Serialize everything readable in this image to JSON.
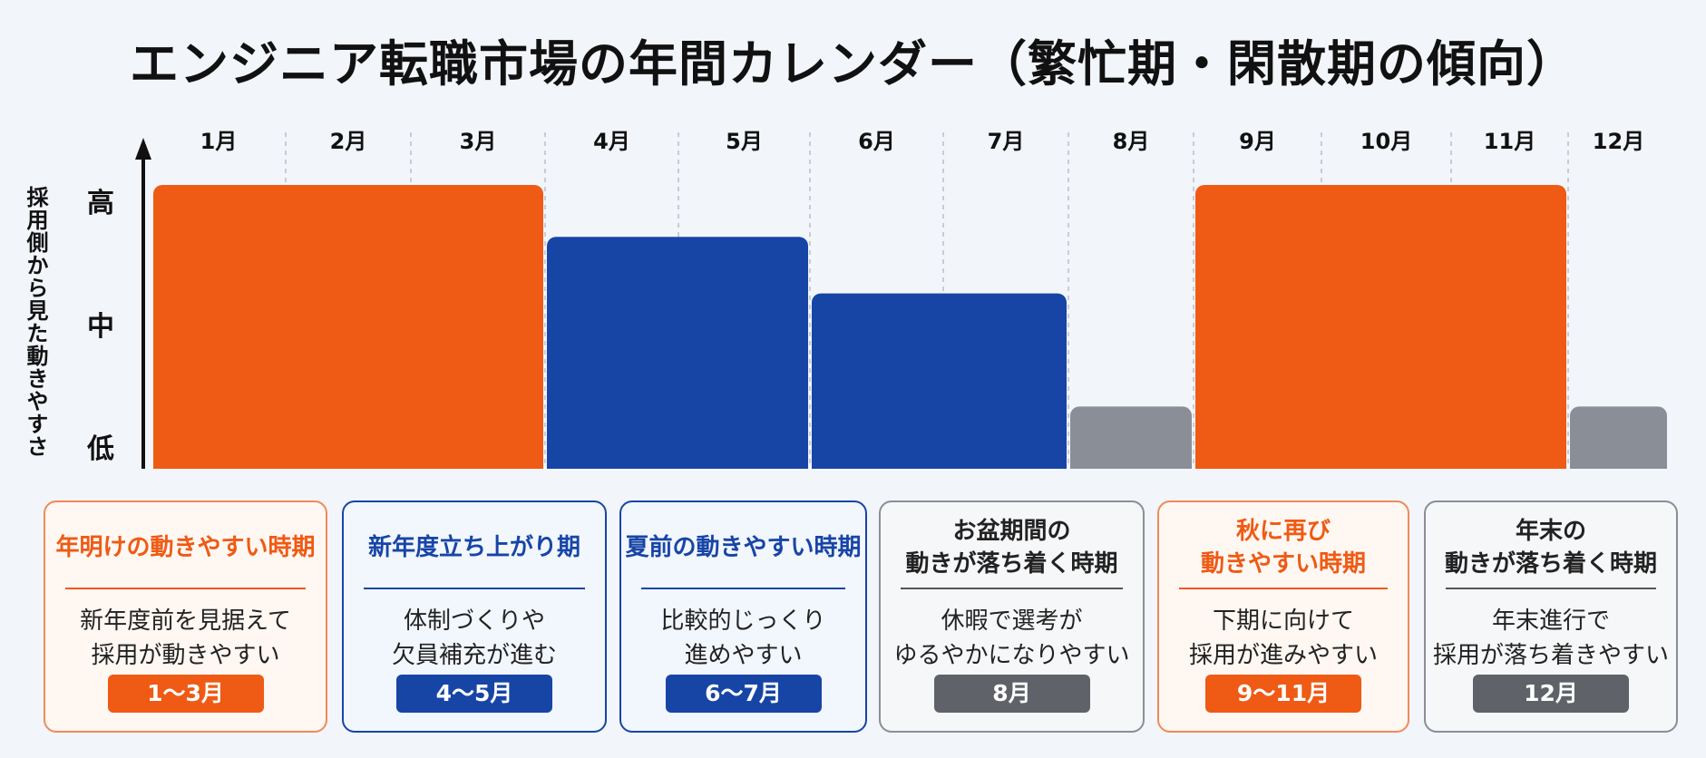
{
  "title": "エンジニア転職市場の年間カレンダー（繁忙期・閑散期の傾向）",
  "colors": {
    "high": "#ef5a14",
    "mid": "#1745a6",
    "low": "#8a8e96"
  },
  "chart_data": {
    "type": "bar",
    "categories": [
      "1月",
      "2月",
      "3月",
      "4月",
      "5月",
      "6月",
      "7月",
      "8月",
      "9月",
      "10月",
      "11月",
      "12月"
    ],
    "values": [
      3,
      3,
      3,
      2.45,
      2.45,
      1.85,
      1.85,
      0.65,
      3,
      3,
      3,
      0.65
    ],
    "ylabel": "採用側から見た動きやすさ",
    "yticks": [
      "低",
      "中",
      "高"
    ],
    "ylim": [
      0,
      3.5
    ],
    "grid": "vertical dashed"
  },
  "cards": [
    {
      "title": "年明けの動きやすい時期",
      "desc": "新年度前を見据えて\n採用が動きやすい",
      "badge": "1〜3月",
      "tone": "high"
    },
    {
      "title": "新年度立ち上がり期",
      "desc": "体制づくりや\n欠員補充が進む",
      "badge": "4〜5月",
      "tone": "mid"
    },
    {
      "title": "夏前の動きやすい時期",
      "desc": "比較的じっくり\n進めやすい",
      "badge": "6〜7月",
      "tone": "mid"
    },
    {
      "title": "お盆期間の\n動きが落ち着く時期",
      "desc": "休暇で選考が\nゆるやかになりやすい",
      "badge": "8月",
      "tone": "low"
    },
    {
      "title": "秋に再び\n動きやすい時期",
      "desc": "下期に向けて\n採用が進みやすい",
      "badge": "9〜11月",
      "tone": "high"
    },
    {
      "title": "年末の\n動きが落ち着く時期",
      "desc": "年末進行で\n採用が落ち着きやすい",
      "badge": "12月",
      "tone": "low"
    }
  ]
}
